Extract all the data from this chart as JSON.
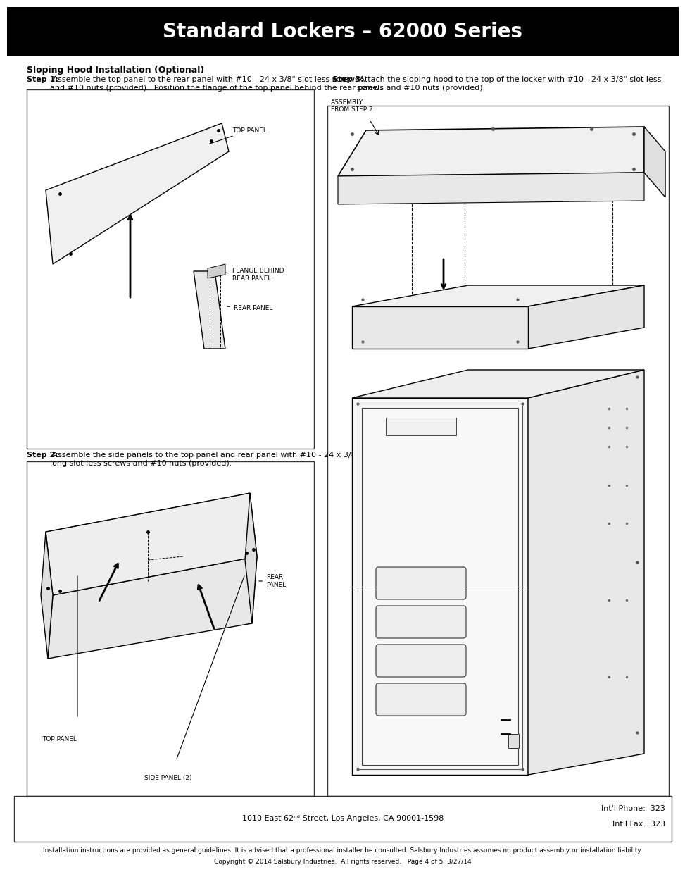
{
  "title": "Standard Lockers – 62000 Series",
  "title_bg": "#000000",
  "title_color": "#ffffff",
  "title_fontsize": 20,
  "page_bg": "#ffffff",
  "margin_color": "#ffffff",
  "section_header": "Sloping Hood Installation (Optional)",
  "step1_bold": "Step 1:",
  "step1_text": " Assemble the top panel to the rear panel with #10 - 24 x 3/8\" slot less screws\nand #10 nuts (provided).  Position the flange of the top panel behind the rear panel.",
  "step2_bold": "Step 2:",
  "step2_text": " Assemble the side panels to the top panel and rear panel with #10 - 24 x 3/8\"\nlong slot less screws and #10 nuts (provided).",
  "step3_bold": "Step 3:",
  "step3_text": " Attach the sloping hood to the top of the locker with #10 - 24 x 3/8\" slot less\nscrews and #10 nuts (provided).",
  "footer_address": "1010 East 62ⁿᵈ Street, Los Angeles, CA 90001-1598",
  "footer_phone": "Int'l Phone:  323",
  "footer_fax": "Int'l Fax:  323",
  "footer_disclaimer": "Installation instructions are provided as general guidelines. It is advised that a professional installer be consulted. Salsbury Industries assumes no product assembly or installation liability.",
  "footer_copyright": "Copyright © 2014 Salsbury Industries.  All rights reserved.   Page 4 of 5  3/27/14",
  "label_top_panel": "TOP PANEL",
  "label_flange": "FLANGE BEHIND\nREAR PANEL",
  "label_rear_panel": "REAR PANEL",
  "label_rear_panel2": "REAR\nPANEL",
  "label_top_panel2": "TOP PANEL",
  "label_side_panel": "SIDE PANEL (2)",
  "label_assembly": "ASSEMBLY\nFROM STEP 2"
}
